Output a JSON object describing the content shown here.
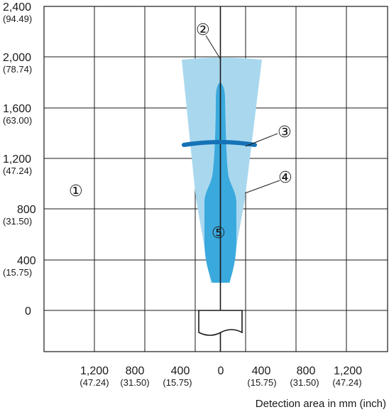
{
  "y_axis": {
    "ticks": [
      {
        "value": 2400,
        "mm": "2,400",
        "inch": "(94.49)"
      },
      {
        "value": 2000,
        "mm": "2,000",
        "inch": "(78.74)"
      },
      {
        "value": 1600,
        "mm": "1,600",
        "inch": "(63.00)"
      },
      {
        "value": 1200,
        "mm": "1,200",
        "inch": "(47.24)"
      },
      {
        "value": 800,
        "mm": "800",
        "inch": "(31.50)"
      },
      {
        "value": 400,
        "mm": "400",
        "inch": "(15.75)"
      },
      {
        "value": 0,
        "mm": "0",
        "inch": ""
      }
    ]
  },
  "x_axis": {
    "ticks": [
      {
        "value": -1200,
        "mm": "1,200",
        "inch": "(47.24)"
      },
      {
        "value": -800,
        "mm": "800",
        "inch": "(31.50)"
      },
      {
        "value": -400,
        "mm": "400",
        "inch": "(15.75)"
      },
      {
        "value": 0,
        "mm": "0",
        "inch": ""
      },
      {
        "value": 400,
        "mm": "400",
        "inch": "(15.75)"
      },
      {
        "value": 800,
        "mm": "800",
        "inch": "(31.50)"
      },
      {
        "value": 1200,
        "mm": "1,200",
        "inch": "(47.24)"
      }
    ],
    "caption": "Detection area in mm (inch)"
  },
  "callouts": {
    "c1": "①",
    "c2": "②",
    "c3": "③",
    "c4": "④",
    "c5": "⑤"
  },
  "colors": {
    "outer_cone": "#a9d8ee",
    "inner_beam": "#3aa9dd",
    "ring": "#1572b6",
    "grid": "#1a1a1a"
  }
}
